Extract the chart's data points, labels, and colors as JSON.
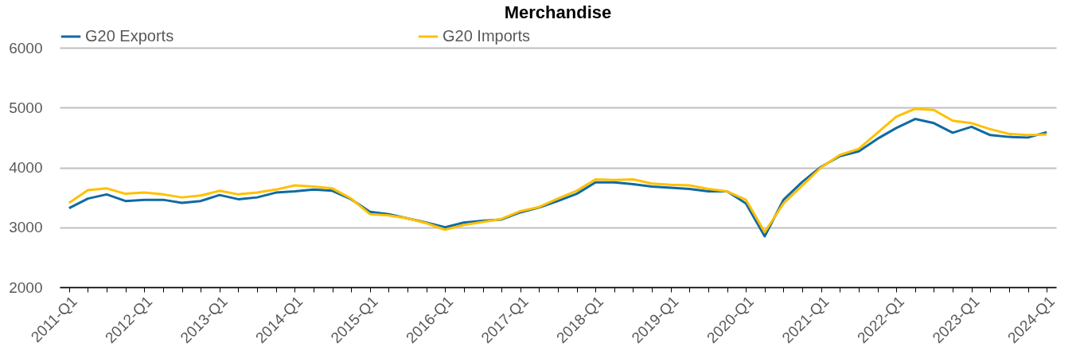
{
  "chart_data": {
    "type": "line",
    "title": "Merchandise",
    "categories": [
      "2011-Q1",
      null,
      null,
      null,
      "2012-Q1",
      null,
      null,
      null,
      "2013-Q1",
      null,
      null,
      null,
      "2014-Q1",
      null,
      null,
      null,
      "2015-Q1",
      null,
      null,
      null,
      "2016-Q1",
      null,
      null,
      null,
      "2017-Q1",
      null,
      null,
      null,
      "2018-Q1",
      null,
      null,
      null,
      "2019-Q1",
      null,
      null,
      null,
      "2020-Q1",
      null,
      null,
      null,
      "2021-Q1",
      null,
      null,
      null,
      "2022-Q1",
      null,
      null,
      null,
      "2023-Q1",
      null,
      null,
      null,
      "2024-Q1"
    ],
    "series": [
      {
        "name": "G20 Exports",
        "color": "#0f6aa3",
        "values": [
          3320,
          3480,
          3550,
          3440,
          3460,
          3460,
          3410,
          3440,
          3540,
          3470,
          3500,
          3580,
          3600,
          3630,
          3610,
          3470,
          3260,
          3220,
          3150,
          3080,
          3000,
          3080,
          3110,
          3130,
          3250,
          3330,
          3440,
          3560,
          3750,
          3750,
          3720,
          3680,
          3660,
          3640,
          3600,
          3600,
          3400,
          2850,
          3460,
          3760,
          4010,
          4190,
          4270,
          4480,
          4660,
          4810,
          4740,
          4580,
          4680,
          4540,
          4510,
          4500,
          4590
        ]
      },
      {
        "name": "G20 Imports",
        "color": "#ffc000",
        "values": [
          3410,
          3620,
          3650,
          3560,
          3580,
          3550,
          3500,
          3530,
          3610,
          3550,
          3580,
          3630,
          3700,
          3680,
          3650,
          3480,
          3220,
          3200,
          3150,
          3070,
          2960,
          3040,
          3090,
          3140,
          3270,
          3340,
          3480,
          3610,
          3800,
          3790,
          3800,
          3730,
          3710,
          3700,
          3640,
          3600,
          3460,
          2920,
          3400,
          3700,
          4000,
          4210,
          4310,
          4580,
          4850,
          4980,
          4960,
          4780,
          4740,
          4640,
          4560,
          4540,
          4550
        ]
      }
    ],
    "ylim": [
      2000,
      6000
    ],
    "yticks": [
      2000,
      3000,
      4000,
      5000,
      6000
    ],
    "grid": "y",
    "legend": "top",
    "marker": "none",
    "line_style": "solid"
  }
}
